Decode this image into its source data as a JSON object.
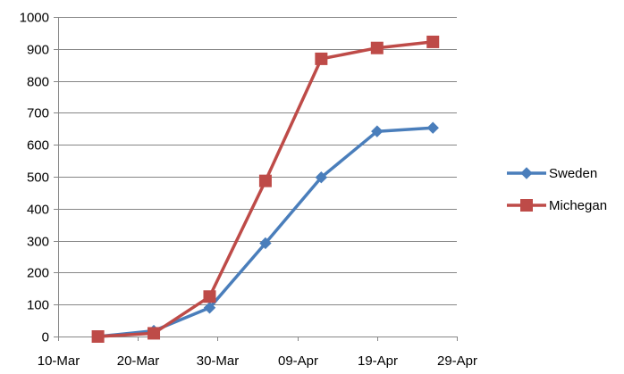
{
  "chart_data": {
    "type": "line",
    "title": "",
    "xlabel": "",
    "ylabel": "",
    "ylim": [
      0,
      1000
    ],
    "y_ticks": [
      0,
      100,
      200,
      300,
      400,
      500,
      600,
      700,
      800,
      900,
      1000
    ],
    "x_range": [
      "2020-03-10",
      "2020-04-29"
    ],
    "x_ticks": [
      {
        "date": "2020-03-10",
        "label": "10-Mar"
      },
      {
        "date": "2020-03-20",
        "label": "20-Mar"
      },
      {
        "date": "2020-03-30",
        "label": "30-Mar"
      },
      {
        "date": "2020-04-09",
        "label": "09-Apr"
      },
      {
        "date": "2020-04-19",
        "label": "19-Apr"
      },
      {
        "date": "2020-04-29",
        "label": "29-Apr"
      }
    ],
    "grid": "horizontal",
    "legend": "right",
    "series": [
      {
        "name": "Sweden",
        "color": "#4a7ebb",
        "marker": "diamond",
        "points": [
          {
            "x": "2020-03-15",
            "y": 0
          },
          {
            "x": "2020-03-22",
            "y": 18
          },
          {
            "x": "2020-03-29",
            "y": 90
          },
          {
            "x": "2020-04-05",
            "y": 292
          },
          {
            "x": "2020-04-12",
            "y": 498
          },
          {
            "x": "2020-04-19",
            "y": 642
          },
          {
            "x": "2020-04-26",
            "y": 653
          }
        ]
      },
      {
        "name": "Michegan",
        "color": "#be4b48",
        "marker": "square",
        "points": [
          {
            "x": "2020-03-15",
            "y": 0
          },
          {
            "x": "2020-03-22",
            "y": 10
          },
          {
            "x": "2020-03-29",
            "y": 125
          },
          {
            "x": "2020-04-05",
            "y": 487
          },
          {
            "x": "2020-04-12",
            "y": 869
          },
          {
            "x": "2020-04-19",
            "y": 903
          },
          {
            "x": "2020-04-26",
            "y": 922
          }
        ]
      }
    ]
  }
}
